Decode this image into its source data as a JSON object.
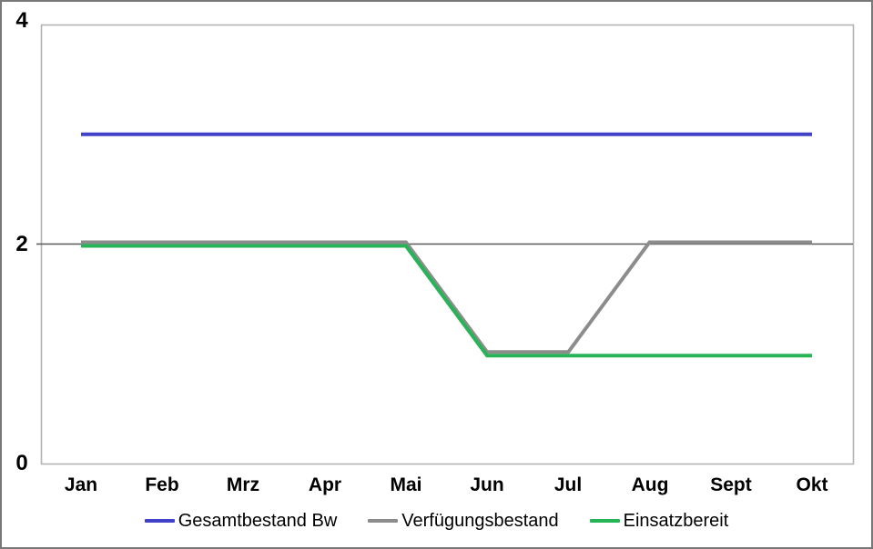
{
  "window": {
    "background": "#ffffff",
    "frame_border_color": "#787878",
    "plot_border_color": "#b3b3b3"
  },
  "chart_data": {
    "type": "line",
    "title": "",
    "xlabel": "",
    "ylabel": "",
    "categories": [
      "Jan",
      "Feb",
      "Mrz",
      "Apr",
      "Mai",
      "Jun",
      "Jul",
      "Aug",
      "Sept",
      "Okt"
    ],
    "series": [
      {
        "name": "Gesamtbestand Bw",
        "color": "#4141c9",
        "values": [
          3,
          3,
          3,
          3,
          3,
          3,
          3,
          3,
          3,
          3
        ]
      },
      {
        "name": "Verfügungsbestand",
        "color": "#8c8c8c",
        "values": [
          2,
          2,
          2,
          2,
          2,
          1,
          1,
          2,
          2,
          2
        ]
      },
      {
        "name": "Einsatzbereit",
        "color": "#26b457",
        "values": [
          2,
          2,
          2,
          2,
          2,
          1,
          1,
          1,
          1,
          1
        ]
      }
    ],
    "y_axis": {
      "ticks": [
        "4",
        "2",
        "0"
      ],
      "tick_values": [
        4,
        2,
        0
      ],
      "min": 0,
      "max": 4
    },
    "gridlines": {
      "values": [
        2
      ],
      "color": "#595959"
    },
    "legend_position": "bottom",
    "grid": "horizontal-at-2-only"
  }
}
